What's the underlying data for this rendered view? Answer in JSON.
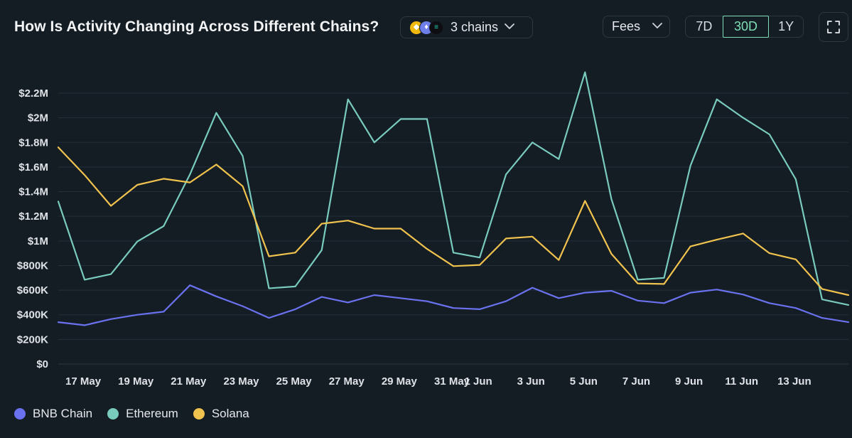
{
  "header": {
    "title": "How Is Activity Changing Across Different Chains?",
    "chain_selector": {
      "label": "3 chains",
      "icons": [
        "bnb-chain-icon",
        "ethereum-icon",
        "solana-icon"
      ]
    },
    "metric_selector": {
      "label": "Fees"
    },
    "time_ranges": [
      {
        "label": "7D",
        "active": false
      },
      {
        "label": "30D",
        "active": true
      },
      {
        "label": "1Y",
        "active": false
      }
    ],
    "expand_icon": "fullscreen-icon"
  },
  "colors": {
    "background": "#141c24",
    "grid": "#22303c",
    "bnb": "#6b72f0",
    "ethereum": "#78cbbd",
    "solana": "#f0c24e",
    "active_range": "#7fe0b8"
  },
  "chart_data": {
    "type": "line",
    "x": [
      "16 May",
      "17 May",
      "18 May",
      "19 May",
      "20 May",
      "21 May",
      "22 May",
      "23 May",
      "24 May",
      "25 May",
      "26 May",
      "27 May",
      "28 May",
      "29 May",
      "30 May",
      "31 May",
      "1 Jun",
      "2 Jun",
      "3 Jun",
      "4 Jun",
      "5 Jun",
      "6 Jun",
      "7 Jun",
      "8 Jun",
      "9 Jun",
      "10 Jun",
      "11 Jun",
      "12 Jun",
      "13 Jun",
      "14 Jun",
      "15 Jun"
    ],
    "x_tick_labels": [
      "17 May",
      "19 May",
      "21 May",
      "23 May",
      "25 May",
      "27 May",
      "29 May",
      "31 May",
      "1 Jun",
      "3 Jun",
      "5 Jun",
      "7 Jun",
      "9 Jun",
      "11 Jun",
      "13 Jun"
    ],
    "y_ticks": [
      "$0",
      "$200K",
      "$400K",
      "$600K",
      "$800K",
      "$1M",
      "$1.2M",
      "$1.4M",
      "$1.6M",
      "$1.8M",
      "$2M",
      "$2.2M"
    ],
    "ylim": [
      0,
      2200000
    ],
    "grid": true,
    "legend_position": "bottom-left",
    "series": [
      {
        "name": "BNB Chain",
        "color": "#6b72f0",
        "values": [
          340000,
          315000,
          365000,
          400000,
          425000,
          640000,
          550000,
          470000,
          375000,
          445000,
          545000,
          500000,
          560000,
          535000,
          510000,
          455000,
          445000,
          510000,
          620000,
          535000,
          580000,
          595000,
          515000,
          495000,
          580000,
          605000,
          565000,
          495000,
          455000,
          375000,
          340000
        ]
      },
      {
        "name": "Ethereum",
        "color": "#78cbbd",
        "values": [
          1320000,
          685000,
          730000,
          995000,
          1120000,
          1540000,
          2040000,
          1690000,
          615000,
          630000,
          925000,
          2150000,
          1800000,
          1990000,
          1990000,
          905000,
          865000,
          1540000,
          1800000,
          1665000,
          2370000,
          1340000,
          685000,
          700000,
          1610000,
          2150000,
          2000000,
          1865000,
          1500000,
          525000,
          480000
        ]
      },
      {
        "name": "Solana",
        "color": "#f0c24e",
        "values": [
          1760000,
          1535000,
          1285000,
          1455000,
          1505000,
          1475000,
          1620000,
          1445000,
          875000,
          905000,
          1140000,
          1165000,
          1100000,
          1100000,
          935000,
          795000,
          805000,
          1020000,
          1035000,
          845000,
          1325000,
          895000,
          655000,
          650000,
          955000,
          1010000,
          1060000,
          900000,
          850000,
          610000,
          560000
        ]
      }
    ]
  }
}
